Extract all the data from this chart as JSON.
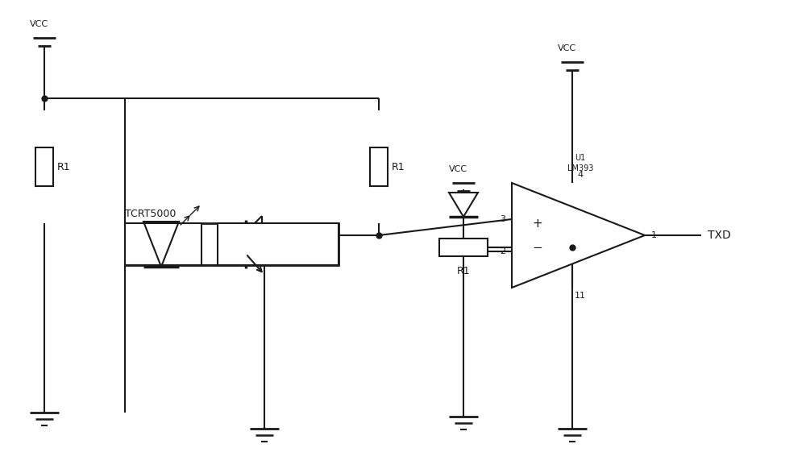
{
  "bg": "#ffffff",
  "lc": "#1a1a1a",
  "lw": 1.5,
  "fw": 10.0,
  "fh": 5.87,
  "dpi": 100,
  "vcc": "VCC",
  "r1": "R1",
  "tcrt": "TCRT5000",
  "u1": "U1",
  "lm393": "LM393",
  "txd": "TXD",
  "plus": "+",
  "minus": "−",
  "p1": "1",
  "p2": "2",
  "p3": "3",
  "p4": "4",
  "p11": "11"
}
